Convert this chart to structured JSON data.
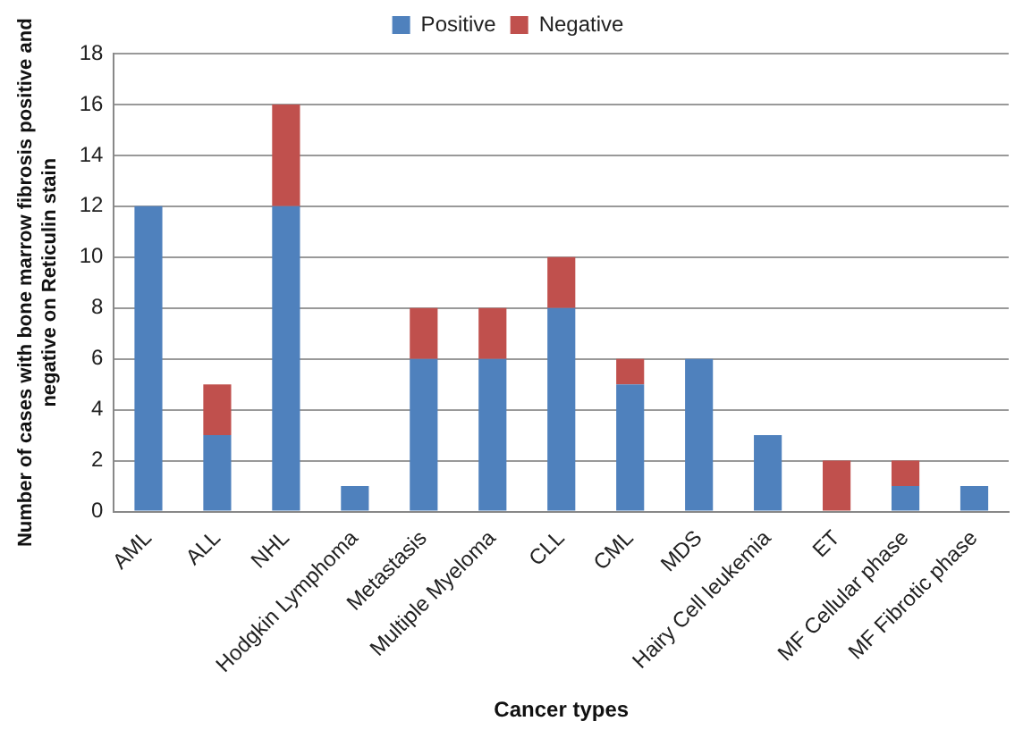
{
  "chart_data": {
    "type": "bar",
    "stacked": true,
    "xlabel": "Cancer types",
    "ylabel": "Number of cases with bone marrow fibrosis positive and negative on Reticulin stain",
    "categories": [
      "AML",
      "ALL",
      "NHL",
      "Hodgkin Lymphoma",
      "Metastasis",
      "Multiple Myeloma",
      "CLL",
      "CML",
      "MDS",
      "Hairy Cell leukemia",
      "ET",
      "MF Cellular phase",
      "MF Fibrotic phase"
    ],
    "series": [
      {
        "name": "Positive",
        "color": "#4f81bd",
        "values": [
          12,
          3,
          12,
          1,
          6,
          6,
          8,
          5,
          6,
          3,
          0,
          1,
          1
        ]
      },
      {
        "name": "Negative",
        "color": "#c0504d",
        "values": [
          0,
          2,
          4,
          0,
          2,
          2,
          2,
          1,
          0,
          0,
          2,
          1,
          0
        ]
      }
    ],
    "ylim": [
      0,
      18
    ],
    "yticks": [
      0,
      2,
      4,
      6,
      8,
      10,
      12,
      14,
      16,
      18
    ],
    "grid": "y",
    "legend": "top"
  }
}
